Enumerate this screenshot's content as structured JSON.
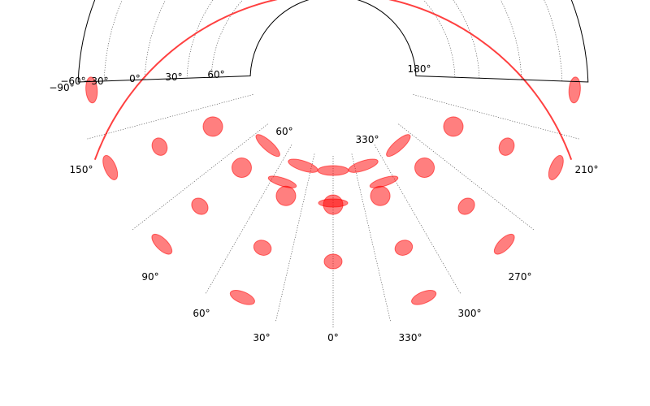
{
  "chart_data": {
    "type": "scatter",
    "projection": "polar-stereographic (partial annulus)",
    "title": "",
    "xlabel": "",
    "ylabel": "",
    "longitude_ticks": [
      "30°",
      "60°",
      "90°",
      "150°",
      "210°",
      "270°",
      "300°",
      "330°"
    ],
    "longitude_tick_zero": "0°",
    "latitude_ticks": [
      "−90°",
      "−60°",
      "−30°",
      "0°",
      "30°",
      "60°"
    ],
    "latitude_ticks_inner": [
      "60°",
      "330°",
      "180°"
    ],
    "marker_color": "#ff0000",
    "marker_alpha": 0.5,
    "grid": true,
    "grid_style": "dotted",
    "series": [
      {
        "marker": "indicatrix ellipse",
        "rows": [
          {
            "radius_index": 1,
            "angles": [
              -42,
              -18,
              0,
              18,
              42
            ]
          },
          {
            "radius_index": 2,
            "angles": [
              -66,
              -44,
              -21,
              0,
              21,
              44,
              66
            ]
          },
          {
            "radius_index": 3,
            "angles": [
              -67,
              -45,
              -22,
              0,
              22,
              45,
              67
            ]
          },
          {
            "radius_index": 4,
            "angles": [
              -86,
              -67,
              -45,
              -22,
              22,
              45,
              67,
              86
            ]
          }
        ]
      }
    ]
  }
}
